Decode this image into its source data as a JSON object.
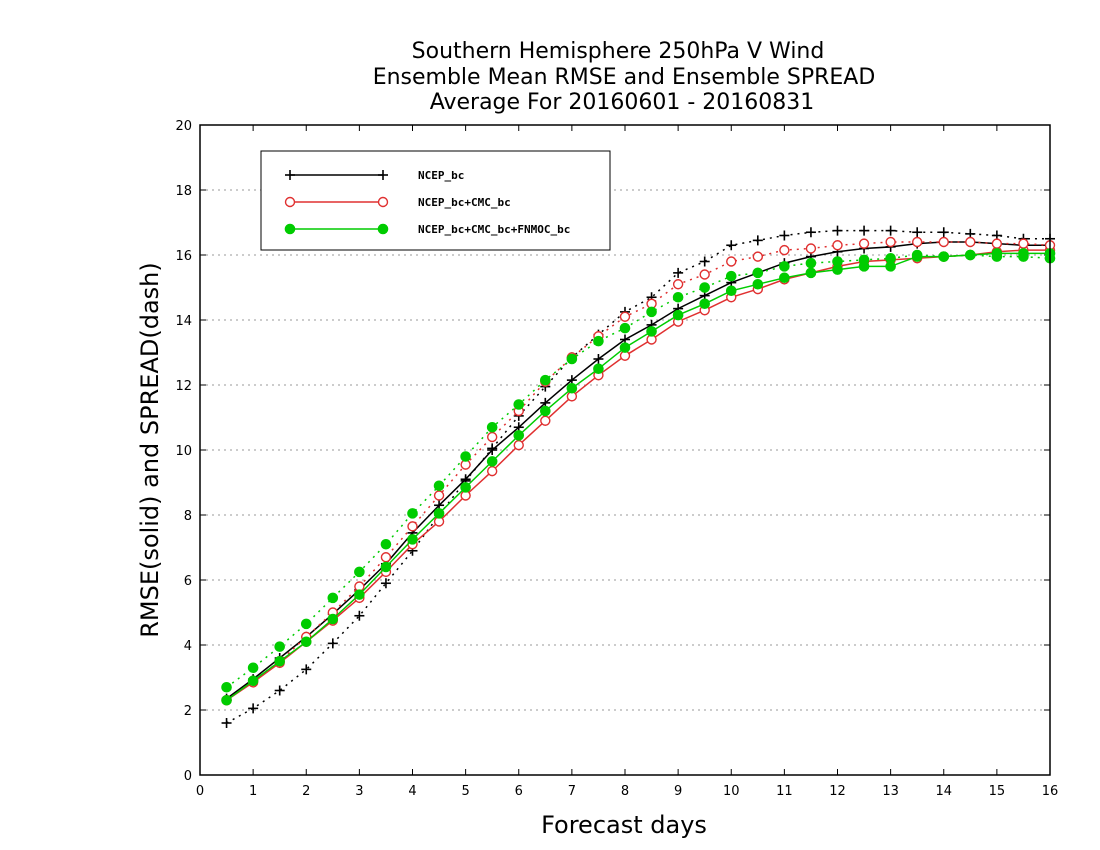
{
  "chart_data": {
    "type": "line",
    "title_lines": [
      "Southern Hemisphere 250hPa V Wind",
      "Ensemble Mean RMSE and Ensemble SPREAD",
      "Average For 20160601 - 20160831"
    ],
    "xlabel": "Forecast days",
    "ylabel": "RMSE(solid) and SPREAD(dash)",
    "xlim": [
      0,
      16
    ],
    "ylim": [
      0,
      20
    ],
    "xticks": [
      0,
      1,
      2,
      3,
      4,
      5,
      6,
      7,
      8,
      9,
      10,
      11,
      12,
      13,
      14,
      15,
      16
    ],
    "yticks": [
      0,
      2,
      4,
      6,
      8,
      10,
      12,
      14,
      16,
      18,
      20
    ],
    "grid": true,
    "legend_position": "top-left",
    "x": [
      0.5,
      1,
      1.5,
      2,
      2.5,
      3,
      3.5,
      4,
      4.5,
      5,
      5.5,
      6,
      6.5,
      7,
      7.5,
      8,
      8.5,
      9,
      9.5,
      10,
      10.5,
      11,
      11.5,
      12,
      12.5,
      13,
      13.5,
      14,
      14.5,
      15,
      15.5,
      16
    ],
    "series": [
      {
        "name": "NCEP_bc",
        "color": "#000000",
        "marker": "plus",
        "rmse": [
          2.35,
          2.95,
          3.6,
          4.25,
          4.95,
          5.7,
          6.5,
          7.45,
          8.3,
          9.1,
          10.0,
          10.7,
          11.45,
          12.15,
          12.8,
          13.4,
          13.85,
          14.35,
          14.75,
          15.15,
          15.45,
          15.75,
          15.95,
          16.1,
          16.2,
          16.25,
          16.35,
          16.4,
          16.4,
          16.35,
          16.3,
          16.3
        ],
        "spread": [
          1.6,
          2.05,
          2.6,
          3.25,
          4.05,
          4.9,
          5.9,
          6.9,
          8.0,
          9.05,
          10.05,
          11.05,
          11.95,
          12.85,
          13.55,
          14.25,
          14.7,
          15.45,
          15.8,
          16.3,
          16.45,
          16.6,
          16.7,
          16.75,
          16.75,
          16.75,
          16.7,
          16.7,
          16.65,
          16.6,
          16.5,
          16.5
        ]
      },
      {
        "name": "NCEP_bc+CMC_bc",
        "color": "#e03030",
        "marker": "open-circle",
        "rmse": [
          2.3,
          2.85,
          3.45,
          4.1,
          4.75,
          5.45,
          6.25,
          7.1,
          7.8,
          8.6,
          9.35,
          10.15,
          10.9,
          11.65,
          12.3,
          12.9,
          13.4,
          13.95,
          14.3,
          14.7,
          14.95,
          15.25,
          15.45,
          15.65,
          15.8,
          15.85,
          15.9,
          15.95,
          16.0,
          16.1,
          16.15,
          16.15
        ],
        "spread": [
          2.3,
          2.9,
          3.5,
          4.25,
          5.0,
          5.8,
          6.7,
          7.65,
          8.6,
          9.55,
          10.4,
          11.2,
          12.1,
          12.85,
          13.5,
          14.1,
          14.5,
          15.1,
          15.4,
          15.8,
          15.95,
          16.15,
          16.2,
          16.3,
          16.35,
          16.4,
          16.4,
          16.4,
          16.4,
          16.35,
          16.35,
          16.3
        ]
      },
      {
        "name": "NCEP_bc+CMC_bc+FNMOC_bc",
        "color": "#00cc00",
        "marker": "filled-circle",
        "rmse": [
          2.3,
          2.9,
          3.5,
          4.1,
          4.8,
          5.55,
          6.4,
          7.25,
          8.05,
          8.85,
          9.65,
          10.45,
          11.2,
          11.9,
          12.5,
          13.15,
          13.65,
          14.15,
          14.5,
          14.9,
          15.1,
          15.3,
          15.45,
          15.55,
          15.65,
          15.65,
          15.95,
          15.95,
          16.0,
          16.05,
          16.05,
          16.05
        ],
        "spread": [
          2.7,
          3.3,
          3.95,
          4.65,
          5.45,
          6.25,
          7.1,
          8.05,
          8.9,
          9.8,
          10.7,
          11.4,
          12.15,
          12.8,
          13.35,
          13.75,
          14.25,
          14.7,
          15.0,
          15.35,
          15.45,
          15.65,
          15.75,
          15.8,
          15.85,
          15.9,
          16.0,
          15.95,
          16.0,
          15.95,
          15.95,
          15.9
        ]
      }
    ]
  }
}
